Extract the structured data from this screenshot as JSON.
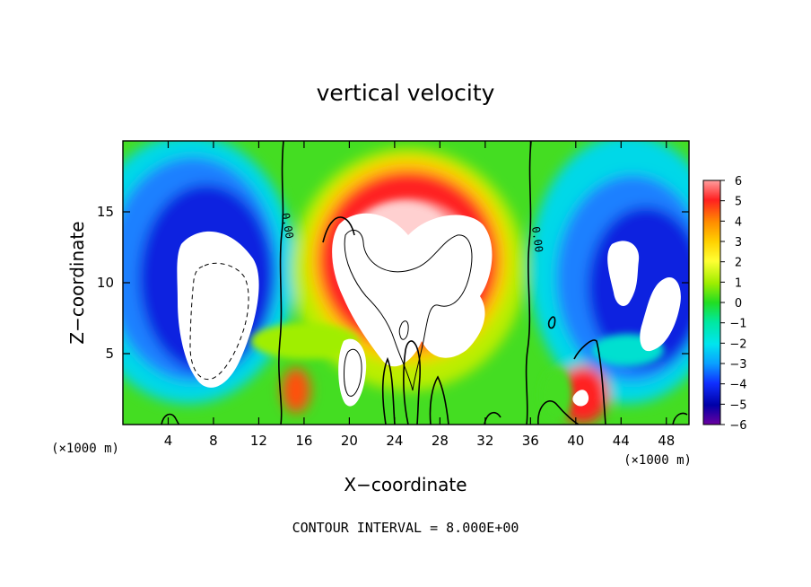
{
  "chart_data": {
    "type": "heatmap",
    "title": "vertical velocity",
    "xlabel": "X−coordinate",
    "ylabel": "Z−coordinate",
    "x_unit_left": "(×1000 m)",
    "x_unit_right": "(×1000 m)",
    "xlim": [
      0,
      50
    ],
    "ylim": [
      0,
      20
    ],
    "x_ticks": [
      "4",
      "8",
      "12",
      "16",
      "20",
      "24",
      "28",
      "32",
      "36",
      "40",
      "44",
      "48"
    ],
    "y_ticks": [
      "5",
      "10",
      "15"
    ],
    "colorbar_ticks": [
      "6",
      "5",
      "4",
      "3",
      "2",
      "1",
      "0",
      "−1",
      "−2",
      "−3",
      "−4",
      "−5",
      "−6"
    ],
    "colorbar_range": [
      -6,
      6
    ],
    "contour_label": "0.00",
    "footer": "CONTOUR INTERVAL = 8.000E+00",
    "features": [
      {
        "name": "updraft-core",
        "x": 25,
        "z": 12,
        "w": 12
      },
      {
        "name": "updraft-base-left",
        "x": 21,
        "z": 4,
        "w": 8
      },
      {
        "name": "downdraft-left",
        "x": 8,
        "z": 9,
        "w": -12
      },
      {
        "name": "downdraft-right",
        "x": 45,
        "z": 9,
        "w": -8
      },
      {
        "name": "updraft-small",
        "x": 40,
        "z": 2,
        "w": 6
      }
    ]
  }
}
